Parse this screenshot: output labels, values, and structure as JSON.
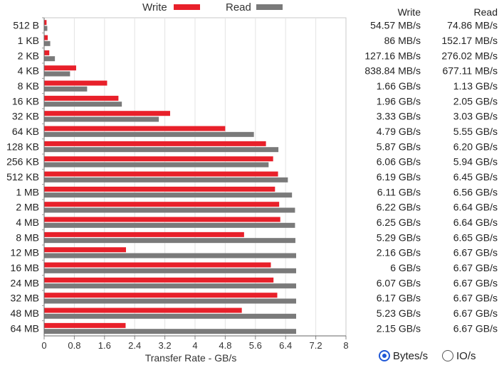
{
  "chart_data": {
    "type": "bar",
    "orientation": "horizontal",
    "categories": [
      "512 B",
      "1 KB",
      "2 KB",
      "4 KB",
      "8 KB",
      "16 KB",
      "32 KB",
      "64 KB",
      "128 KB",
      "256 KB",
      "512 KB",
      "1 MB",
      "2 MB",
      "4 MB",
      "8 MB",
      "12 MB",
      "16 MB",
      "24 MB",
      "32 MB",
      "48 MB",
      "64 MB"
    ],
    "series": [
      {
        "name": "Write",
        "color": "#e8202a",
        "values": [
          0.0546,
          0.086,
          0.1272,
          0.8388,
          1.66,
          1.96,
          3.33,
          4.79,
          5.87,
          6.06,
          6.19,
          6.11,
          6.22,
          6.25,
          5.29,
          2.16,
          6.0,
          6.07,
          6.17,
          5.23,
          2.15
        ],
        "labels": [
          "54.57 MB/s",
          "86 MB/s",
          "127.16 MB/s",
          "838.84 MB/s",
          "1.66 GB/s",
          "1.96 GB/s",
          "3.33 GB/s",
          "4.79 GB/s",
          "5.87 GB/s",
          "6.06 GB/s",
          "6.19 GB/s",
          "6.11 GB/s",
          "6.22 GB/s",
          "6.25 GB/s",
          "5.29 GB/s",
          "2.16 GB/s",
          "6 GB/s",
          "6.07 GB/s",
          "6.17 GB/s",
          "5.23 GB/s",
          "2.15 GB/s"
        ]
      },
      {
        "name": "Read",
        "color": "#7a7a7a",
        "values": [
          0.0749,
          0.1522,
          0.276,
          0.6771,
          1.13,
          2.05,
          3.03,
          5.55,
          6.2,
          5.94,
          6.45,
          6.56,
          6.64,
          6.64,
          6.65,
          6.67,
          6.67,
          6.67,
          6.67,
          6.67,
          6.67
        ],
        "labels": [
          "74.86 MB/s",
          "152.17 MB/s",
          "276.02 MB/s",
          "677.11 MB/s",
          "1.13 GB/s",
          "2.05 GB/s",
          "3.03 GB/s",
          "5.55 GB/s",
          "6.20 GB/s",
          "5.94 GB/s",
          "6.45 GB/s",
          "6.56 GB/s",
          "6.64 GB/s",
          "6.64 GB/s",
          "6.65 GB/s",
          "6.67 GB/s",
          "6.67 GB/s",
          "6.67 GB/s",
          "6.67 GB/s",
          "6.67 GB/s",
          "6.67 GB/s"
        ]
      }
    ],
    "xlabel": "Transfer Rate - GB/s",
    "xlim": [
      0,
      8
    ],
    "xticks": [
      0,
      0.8,
      1.6,
      2.4,
      3.2,
      4,
      4.8,
      5.6,
      6.4,
      7.2,
      8
    ],
    "xtick_labels": [
      "0",
      "0.8",
      "1.6",
      "2.4",
      "3.2",
      "4",
      "4.8",
      "5.6",
      "6.4",
      "7.2",
      "8"
    ],
    "grid": true,
    "legend": "top"
  },
  "columns": {
    "write_header": "Write",
    "read_header": "Read"
  },
  "units": {
    "bytes_label": "Bytes/s",
    "io_label": "IO/s",
    "selected": "bytes"
  }
}
